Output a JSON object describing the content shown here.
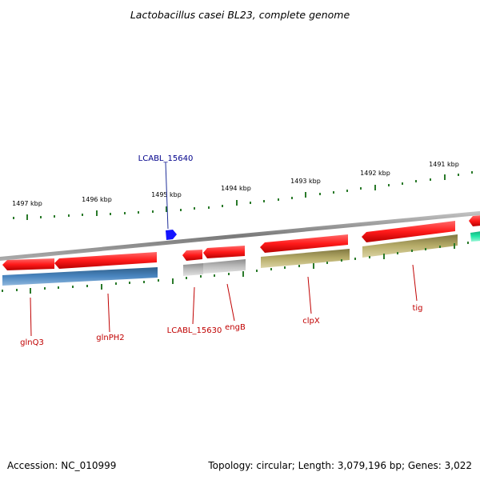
{
  "title": "Lactobacillus casei BL23, complete genome",
  "footer": {
    "accession": "Accession: NC_010999",
    "summary": "Topology: circular; Length: 3,079,196 bp; Genes: 3,022"
  },
  "scale_labels": [
    "1497 kbp",
    "1496 kbp",
    "1495 kbp",
    "1494 kbp",
    "1493 kbp",
    "1492 kbp",
    "1491 kbp"
  ],
  "gene_labels": [
    {
      "text": "LCABL_15640",
      "color": "#00008b"
    },
    {
      "text": "glnQ3",
      "color": "#c00000"
    },
    {
      "text": "glnPH2",
      "color": "#c00000"
    },
    {
      "text": "LCABL_15630",
      "color": "#c00000"
    },
    {
      "text": "engB",
      "color": "#c00000"
    },
    {
      "text": "clpX",
      "color": "#c00000"
    },
    {
      "text": "tig",
      "color": "#c00000"
    }
  ],
  "colors": {
    "cds": "#ff1a1a",
    "cog_blue": "#4a86c0",
    "cog_gray": "#bdbdbd",
    "cog_olive": "#b7ad6a",
    "cog_teal": "#22e8a8",
    "highlight": "#1414ff",
    "backbone": "#808080",
    "ticks": "#2a7a2a"
  }
}
